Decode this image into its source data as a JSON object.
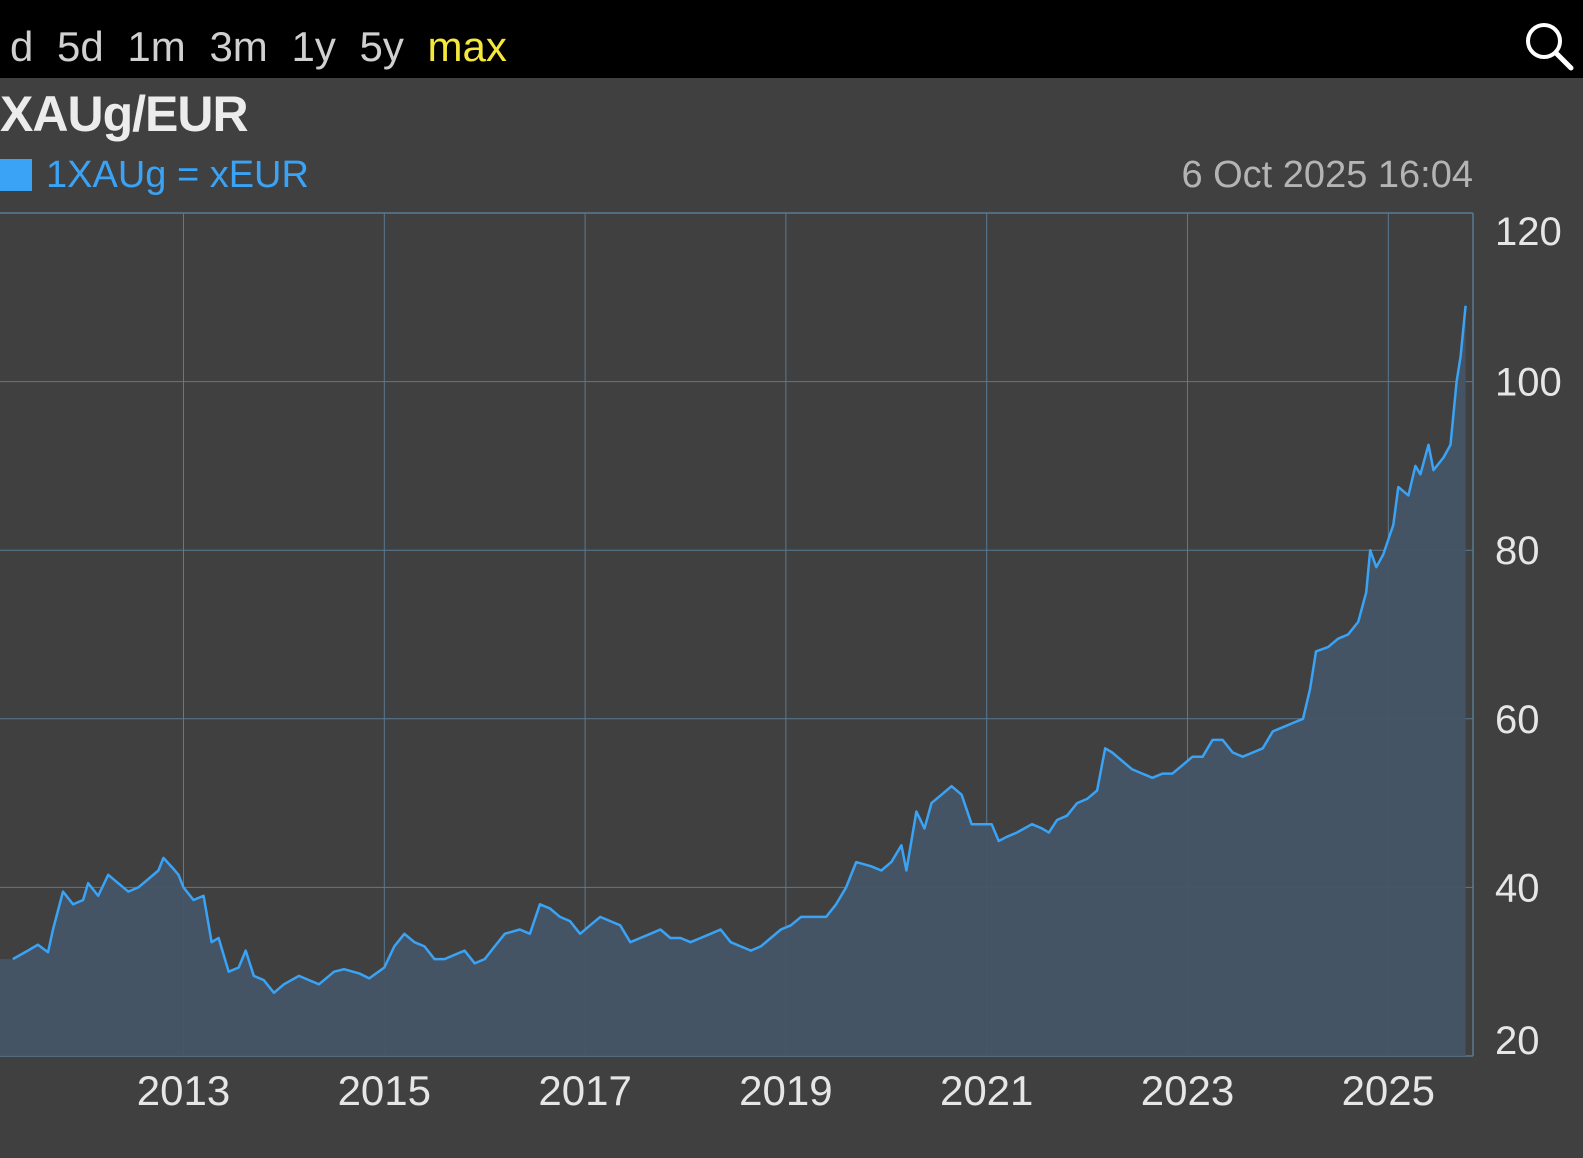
{
  "toolbar": {
    "range_tabs": [
      "d",
      "5d",
      "1m",
      "3m",
      "1y",
      "5y",
      "max"
    ],
    "active_tab": "max",
    "search_icon": "search-icon"
  },
  "header": {
    "title": "XAUg/EUR",
    "legend_label": "1XAUg = xEUR",
    "timestamp": "6 Oct 2025 16:04"
  },
  "colors": {
    "background": "#404040",
    "toolbar_bg": "#000000",
    "active_tab": "#f5e83a",
    "series_line": "#3aa3f5",
    "area_fill": "#445566",
    "grid": "#587a94"
  },
  "chart_data": {
    "type": "area",
    "series": [
      {
        "name": "1XAUg = xEUR",
        "points": [
          [
            2011.3,
            31.5
          ],
          [
            2011.45,
            32.5
          ],
          [
            2011.55,
            33.2
          ],
          [
            2011.65,
            32.3
          ],
          [
            2011.7,
            35
          ],
          [
            2011.8,
            39.5
          ],
          [
            2011.9,
            38
          ],
          [
            2012.0,
            38.5
          ],
          [
            2012.05,
            40.5
          ],
          [
            2012.15,
            39
          ],
          [
            2012.25,
            41.5
          ],
          [
            2012.35,
            40.5
          ],
          [
            2012.45,
            39.5
          ],
          [
            2012.55,
            40
          ],
          [
            2012.65,
            41
          ],
          [
            2012.75,
            42
          ],
          [
            2012.8,
            43.5
          ],
          [
            2012.9,
            42.2
          ],
          [
            2012.95,
            41.5
          ],
          [
            2013.0,
            40
          ],
          [
            2013.1,
            38.5
          ],
          [
            2013.2,
            39
          ],
          [
            2013.28,
            33.5
          ],
          [
            2013.35,
            34
          ],
          [
            2013.45,
            30
          ],
          [
            2013.55,
            30.5
          ],
          [
            2013.62,
            32.5
          ],
          [
            2013.7,
            29.5
          ],
          [
            2013.8,
            29
          ],
          [
            2013.9,
            27.5
          ],
          [
            2014.0,
            28.5
          ],
          [
            2014.15,
            29.5
          ],
          [
            2014.25,
            29
          ],
          [
            2014.35,
            28.5
          ],
          [
            2014.5,
            30
          ],
          [
            2014.6,
            30.3
          ],
          [
            2014.75,
            29.8
          ],
          [
            2014.85,
            29.2
          ],
          [
            2015.0,
            30.5
          ],
          [
            2015.1,
            33
          ],
          [
            2015.2,
            34.5
          ],
          [
            2015.3,
            33.5
          ],
          [
            2015.4,
            33
          ],
          [
            2015.5,
            31.5
          ],
          [
            2015.6,
            31.5
          ],
          [
            2015.7,
            32
          ],
          [
            2015.8,
            32.5
          ],
          [
            2015.9,
            31
          ],
          [
            2016.0,
            31.5
          ],
          [
            2016.1,
            33
          ],
          [
            2016.2,
            34.5
          ],
          [
            2016.35,
            35
          ],
          [
            2016.45,
            34.5
          ],
          [
            2016.55,
            38
          ],
          [
            2016.65,
            37.5
          ],
          [
            2016.75,
            36.5
          ],
          [
            2016.85,
            36
          ],
          [
            2016.95,
            34.5
          ],
          [
            2017.05,
            35.5
          ],
          [
            2017.15,
            36.5
          ],
          [
            2017.25,
            36
          ],
          [
            2017.35,
            35.5
          ],
          [
            2017.45,
            33.5
          ],
          [
            2017.55,
            34
          ],
          [
            2017.65,
            34.5
          ],
          [
            2017.75,
            35
          ],
          [
            2017.85,
            34
          ],
          [
            2017.95,
            34
          ],
          [
            2018.05,
            33.5
          ],
          [
            2018.15,
            34
          ],
          [
            2018.25,
            34.5
          ],
          [
            2018.35,
            35
          ],
          [
            2018.45,
            33.5
          ],
          [
            2018.55,
            33
          ],
          [
            2018.65,
            32.5
          ],
          [
            2018.75,
            33
          ],
          [
            2018.85,
            34
          ],
          [
            2018.95,
            35
          ],
          [
            2019.05,
            35.5
          ],
          [
            2019.15,
            36.5
          ],
          [
            2019.25,
            36.5
          ],
          [
            2019.4,
            36.5
          ],
          [
            2019.5,
            38
          ],
          [
            2019.6,
            40
          ],
          [
            2019.7,
            43
          ],
          [
            2019.85,
            42.5
          ],
          [
            2019.95,
            42
          ],
          [
            2020.05,
            43
          ],
          [
            2020.15,
            45
          ],
          [
            2020.2,
            42
          ],
          [
            2020.3,
            49
          ],
          [
            2020.38,
            47
          ],
          [
            2020.45,
            50
          ],
          [
            2020.55,
            51
          ],
          [
            2020.65,
            52
          ],
          [
            2020.75,
            51
          ],
          [
            2020.85,
            47.5
          ],
          [
            2020.95,
            47.5
          ],
          [
            2021.05,
            47.5
          ],
          [
            2021.12,
            45.5
          ],
          [
            2021.2,
            46
          ],
          [
            2021.3,
            46.5
          ],
          [
            2021.45,
            47.5
          ],
          [
            2021.55,
            47
          ],
          [
            2021.62,
            46.5
          ],
          [
            2021.7,
            48
          ],
          [
            2021.8,
            48.5
          ],
          [
            2021.9,
            50
          ],
          [
            2022.0,
            50.5
          ],
          [
            2022.1,
            51.5
          ],
          [
            2022.18,
            56.5
          ],
          [
            2022.25,
            56
          ],
          [
            2022.35,
            55
          ],
          [
            2022.45,
            54
          ],
          [
            2022.55,
            53.5
          ],
          [
            2022.65,
            53
          ],
          [
            2022.75,
            53.5
          ],
          [
            2022.85,
            53.5
          ],
          [
            2022.95,
            54.5
          ],
          [
            2023.05,
            55.5
          ],
          [
            2023.15,
            55.5
          ],
          [
            2023.25,
            57.5
          ],
          [
            2023.35,
            57.5
          ],
          [
            2023.45,
            56
          ],
          [
            2023.55,
            55.5
          ],
          [
            2023.65,
            56
          ],
          [
            2023.75,
            56.5
          ],
          [
            2023.85,
            58.5
          ],
          [
            2023.95,
            59
          ],
          [
            2024.05,
            59.5
          ],
          [
            2024.15,
            60
          ],
          [
            2024.22,
            63.5
          ],
          [
            2024.28,
            68
          ],
          [
            2024.4,
            68.5
          ],
          [
            2024.5,
            69.5
          ],
          [
            2024.6,
            70
          ],
          [
            2024.7,
            71.5
          ],
          [
            2024.78,
            75
          ],
          [
            2024.82,
            80
          ],
          [
            2024.88,
            78
          ],
          [
            2024.95,
            79.5
          ],
          [
            2025.05,
            83
          ],
          [
            2025.1,
            87.5
          ],
          [
            2025.2,
            86.5
          ],
          [
            2025.27,
            90
          ],
          [
            2025.32,
            89
          ],
          [
            2025.4,
            92.5
          ],
          [
            2025.45,
            89.5
          ],
          [
            2025.55,
            91
          ],
          [
            2025.62,
            92.5
          ],
          [
            2025.68,
            100
          ],
          [
            2025.72,
            103
          ],
          [
            2025.77,
            109
          ]
        ]
      }
    ],
    "x_ticks": [
      2013,
      2015,
      2017,
      2019,
      2021,
      2023,
      2025
    ],
    "y_ticks": [
      20,
      40,
      60,
      80,
      100,
      120
    ],
    "xlim": [
      2011.2,
      2025.8
    ],
    "ylim": [
      20,
      120
    ],
    "grid": true,
    "y_axis_position": "right"
  }
}
